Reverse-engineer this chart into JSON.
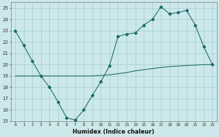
{
  "xlabel": "Humidex (Indice chaleur)",
  "bg_color": "#cce8ea",
  "grid_color": "#aacfd2",
  "line_color": "#1a6b6b",
  "xlim": [
    -0.5,
    23.5
  ],
  "ylim": [
    15,
    25.5
  ],
  "yticks": [
    15,
    16,
    17,
    18,
    19,
    20,
    21,
    22,
    23,
    24,
    25
  ],
  "xticks": [
    0,
    1,
    2,
    3,
    4,
    5,
    6,
    7,
    8,
    9,
    10,
    11,
    12,
    13,
    14,
    15,
    16,
    17,
    18,
    19,
    20,
    21,
    22,
    23
  ],
  "line1_x": [
    0,
    1,
    2,
    3,
    4,
    5,
    6,
    7,
    8,
    9,
    10,
    11,
    12,
    13,
    14,
    15,
    16,
    17,
    18,
    19,
    20,
    21,
    22,
    23
  ],
  "line1_y": [
    23.0,
    21.7,
    20.3,
    19.0,
    18.0,
    16.7,
    15.3,
    15.1,
    16.0,
    17.3,
    18.5,
    19.9,
    22.5,
    22.7,
    22.8,
    23.5,
    24.0,
    25.1,
    24.5,
    24.6,
    24.8,
    23.5,
    21.6,
    20.0
  ],
  "line2_x": [
    0,
    1,
    2,
    3,
    4,
    5,
    6,
    7,
    8,
    9,
    10,
    11,
    12,
    13,
    14,
    15,
    16,
    17,
    18,
    19,
    20,
    21,
    22,
    23
  ],
  "line2_y": [
    19.0,
    19.0,
    19.0,
    19.0,
    19.0,
    19.0,
    19.0,
    19.0,
    19.0,
    19.0,
    19.05,
    19.1,
    19.2,
    19.3,
    19.45,
    19.55,
    19.65,
    19.75,
    19.82,
    19.88,
    19.93,
    19.96,
    20.0,
    20.0
  ]
}
